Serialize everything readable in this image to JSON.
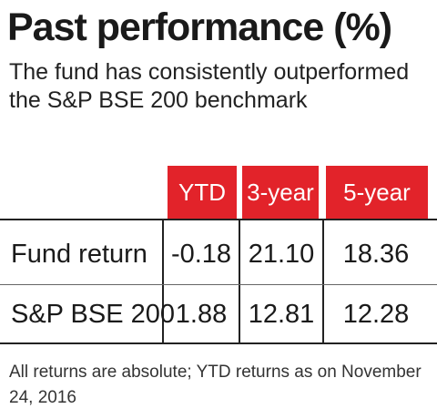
{
  "chart_data": {
    "type": "table",
    "title": "Past performance (%)",
    "subtitle": "The fund has consistently outperformed the S&P BSE 200 benchmark",
    "columns": [
      "YTD",
      "3-year",
      "5-year"
    ],
    "rows": [
      {
        "label": "Fund return",
        "values": [
          "-0.18",
          "21.10",
          "18.36"
        ]
      },
      {
        "label": "S&P BSE 200",
        "values": [
          "1.88",
          "12.81",
          "12.28"
        ]
      }
    ],
    "footnote": "All returns are absolute; YTD returns as on November 24, 2016"
  },
  "colors": {
    "header_bg": "#e2232a",
    "header_text": "#ffffff",
    "rule": "#222222"
  }
}
